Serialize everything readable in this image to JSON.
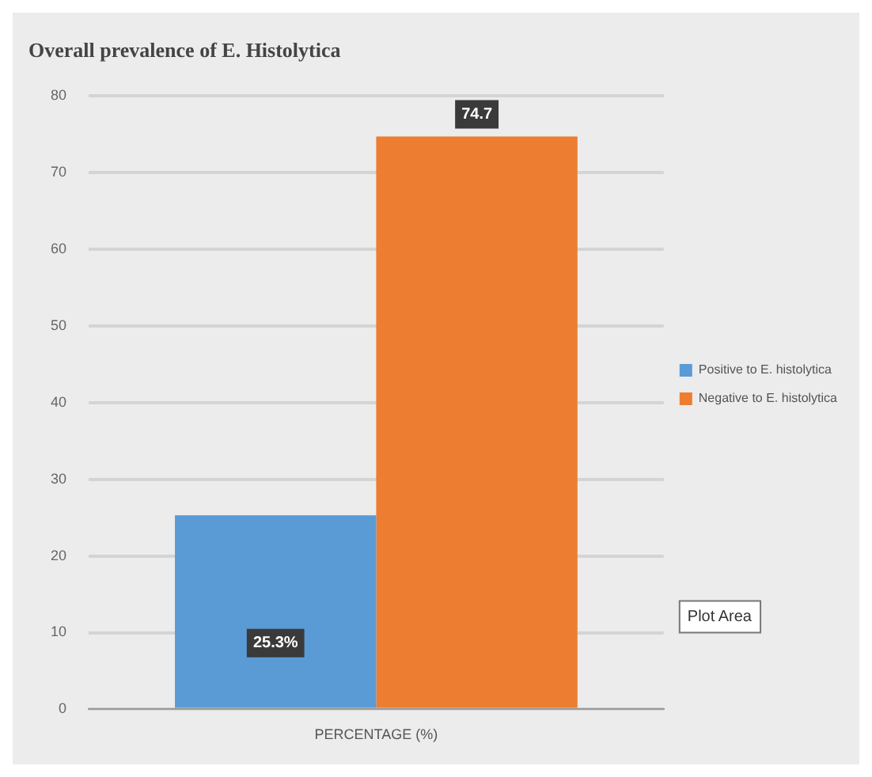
{
  "chart_data": {
    "type": "bar",
    "title": "Overall prevalence of E. Histolytica",
    "categories": [
      "PERCENTAGE (%)"
    ],
    "series": [
      {
        "name": "Positive to E. histolytica",
        "color": "#5b9bd5",
        "values": [
          25.3
        ],
        "value_labels": [
          "25.3%"
        ]
      },
      {
        "name": "Negative to E. histolytica",
        "color": "#ed7d31",
        "values": [
          74.7
        ],
        "value_labels": [
          "74.7"
        ]
      }
    ],
    "ylim": [
      0,
      80
    ],
    "yticks": [
      0,
      10,
      20,
      30,
      40,
      50,
      60,
      70,
      80
    ],
    "grid": "y",
    "legend": "right",
    "annotations": [
      "Plot Area"
    ]
  }
}
